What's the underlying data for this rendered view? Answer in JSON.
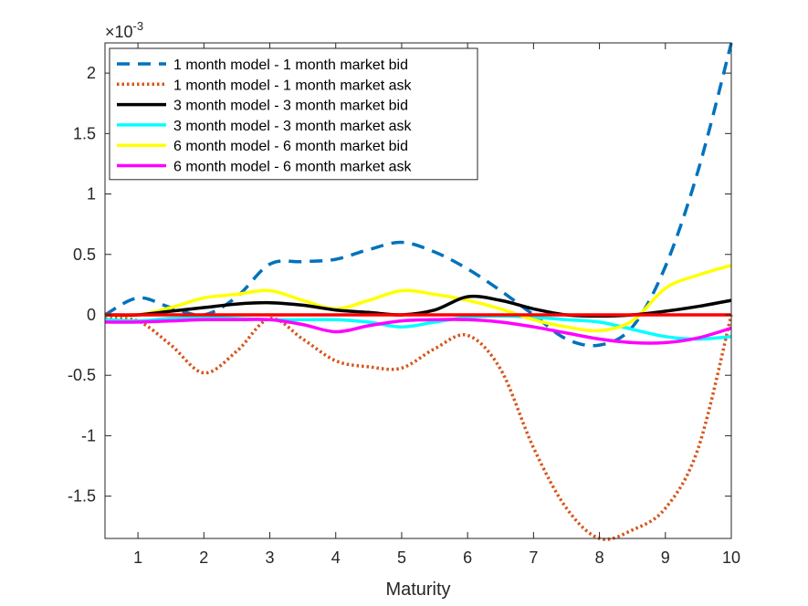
{
  "chart_data": {
    "type": "line",
    "title": "",
    "xlabel": "Maturity",
    "ylabel": "",
    "xlim": [
      0.5,
      10
    ],
    "ylim": [
      -0.00185,
      0.00225
    ],
    "x_ticks": [
      1,
      2,
      3,
      4,
      5,
      6,
      7,
      8,
      9,
      10
    ],
    "x_tick_labels": [
      "1",
      "2",
      "3",
      "4",
      "5",
      "6",
      "7",
      "8",
      "9",
      "10"
    ],
    "y_ticks": [
      -0.0015,
      -0.001,
      -0.0005,
      0,
      0.0005,
      0.001,
      0.0015,
      0.002
    ],
    "y_tick_labels": [
      "-1.5",
      "-1",
      "-0.5",
      "0",
      "0.5",
      "1",
      "1.5",
      "2"
    ],
    "exponent_label": "×10",
    "exponent_power": "-3",
    "legend_position": "top-left",
    "series": [
      {
        "name": "1  month model -  1 month market bid",
        "color": "#0072BD",
        "style": "dashed",
        "x": [
          0.5,
          1,
          1.5,
          2,
          2.5,
          3,
          3.5,
          4,
          4.5,
          5,
          5.5,
          6,
          6.5,
          7,
          7.5,
          8,
          8.5,
          9,
          9.5,
          10
        ],
        "y": [
          0.0,
          0.00014,
          6e-05,
          0.0,
          0.00015,
          0.00042,
          0.00044,
          0.00046,
          0.00054,
          0.0006,
          0.00052,
          0.00038,
          0.0002,
          0.0,
          -0.0002,
          -0.00025,
          -0.0001,
          0.0004,
          0.0012,
          0.00225
        ]
      },
      {
        "name": "1  month model -  1 month market ask",
        "color": "#D95319",
        "style": "dotted",
        "x": [
          0.5,
          1,
          1.5,
          2,
          2.5,
          3,
          3.5,
          4,
          4.5,
          5,
          5.5,
          6,
          6.5,
          7,
          7.5,
          8,
          8.5,
          9,
          9.5,
          10
        ],
        "y": [
          -3e-05,
          -5e-05,
          -0.00025,
          -0.00048,
          -0.0003,
          -3e-05,
          -0.0002,
          -0.00038,
          -0.00043,
          -0.00044,
          -0.00028,
          -0.00017,
          -0.00045,
          -0.0011,
          -0.0016,
          -0.00185,
          -0.00178,
          -0.0016,
          -0.0011,
          0.0
        ]
      },
      {
        "name": "3  month model -  3 month market bid",
        "color": "#000000",
        "style": "solid",
        "x": [
          0.5,
          1,
          1.5,
          2,
          2.5,
          3,
          3.5,
          4,
          4.5,
          5,
          5.5,
          6,
          6.5,
          7,
          7.5,
          8,
          8.5,
          9,
          9.5,
          10
        ],
        "y": [
          0.0,
          0.0,
          3e-05,
          6e-05,
          9e-05,
          0.0001,
          8e-05,
          4e-05,
          2e-05,
          0.0,
          4e-05,
          0.00015,
          0.00012,
          5e-05,
          0.0,
          -1e-05,
          0.0,
          3e-05,
          7e-05,
          0.00012
        ]
      },
      {
        "name": "3  month model -  3 month market ask",
        "color": "#00FFFF",
        "style": "solid",
        "x": [
          0.5,
          1,
          1.5,
          2,
          2.5,
          3,
          3.5,
          4,
          4.5,
          5,
          5.5,
          6,
          6.5,
          7,
          7.5,
          8,
          8.5,
          9,
          9.5,
          10
        ],
        "y": [
          -4e-05,
          -5e-05,
          -3e-05,
          -2e-05,
          -3e-05,
          -4e-05,
          -4e-05,
          -4e-05,
          -6e-05,
          -0.0001,
          -6e-05,
          -2e-05,
          -1e-05,
          -2e-05,
          -4e-05,
          -6e-05,
          -0.00012,
          -0.00018,
          -0.0002,
          -0.00018
        ]
      },
      {
        "name": "6  month model -  6 month market bid",
        "color": "#FFFF00",
        "style": "solid",
        "x": [
          0.5,
          1,
          1.5,
          2,
          2.5,
          3,
          3.5,
          4,
          4.5,
          5,
          5.5,
          6,
          6.5,
          7,
          7.5,
          8,
          8.5,
          9,
          9.5,
          10
        ],
        "y": [
          0.0,
          0.0,
          6e-05,
          0.00014,
          0.00017,
          0.0002,
          0.00012,
          5e-05,
          0.00012,
          0.0002,
          0.00017,
          0.00012,
          5e-05,
          -4e-05,
          -0.0001,
          -0.00013,
          -5e-05,
          0.00022,
          0.00033,
          0.00041
        ]
      },
      {
        "name": "6  month model -  6 month market ask",
        "color": "#FF00FF",
        "style": "solid",
        "x": [
          0.5,
          1,
          1.5,
          2,
          2.5,
          3,
          3.5,
          4,
          4.5,
          5,
          5.5,
          6,
          6.5,
          7,
          7.5,
          8,
          8.5,
          9,
          9.5,
          10
        ],
        "y": [
          -6e-05,
          -6e-05,
          -5e-05,
          -4e-05,
          -4e-05,
          -4e-05,
          -8e-05,
          -0.00014,
          -9e-05,
          -5e-05,
          -4e-05,
          -4e-05,
          -6e-05,
          -0.0001,
          -0.00015,
          -0.0002,
          -0.00023,
          -0.00023,
          -0.00019,
          -0.00011
        ]
      },
      {
        "name": "",
        "color": "#FF0000",
        "style": "solid",
        "x": [
          0.5,
          10
        ],
        "y": [
          0.0,
          0.0
        ]
      }
    ]
  }
}
